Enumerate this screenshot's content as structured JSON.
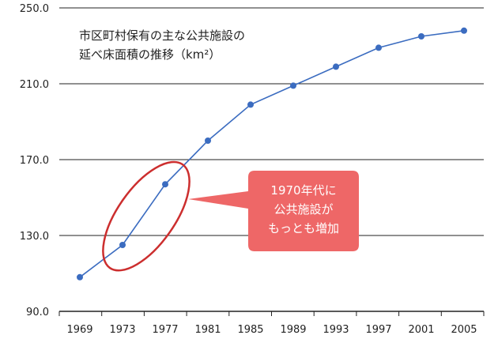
{
  "chart_data": {
    "type": "line",
    "title_lines": [
      "市区町村保有の主な公共施設の",
      "延べ床面積の推移（km²）"
    ],
    "xlabel": "",
    "ylabel": "",
    "x": [
      "1969",
      "1973",
      "1977",
      "1981",
      "1985",
      "1989",
      "1993",
      "1997",
      "2001",
      "2005"
    ],
    "series": [
      {
        "values": [
          108,
          125,
          157,
          180,
          199,
          209,
          219,
          229,
          235,
          238
        ]
      }
    ],
    "ylim": [
      90.0,
      250.0
    ],
    "y_ticks": [
      "90.0",
      "130.0",
      "170.0",
      "210.0",
      "250.0"
    ],
    "grid": true,
    "colors": {
      "line": "#3b6cc0",
      "marker": "#3b6cc0",
      "highlight": "#cc2e2e",
      "callout": "#ee6767"
    },
    "annotation": {
      "lines": [
        "1970年代に",
        "公共施設が",
        "もっとも増加"
      ],
      "highlight_range": [
        "1973",
        "1977"
      ]
    }
  }
}
